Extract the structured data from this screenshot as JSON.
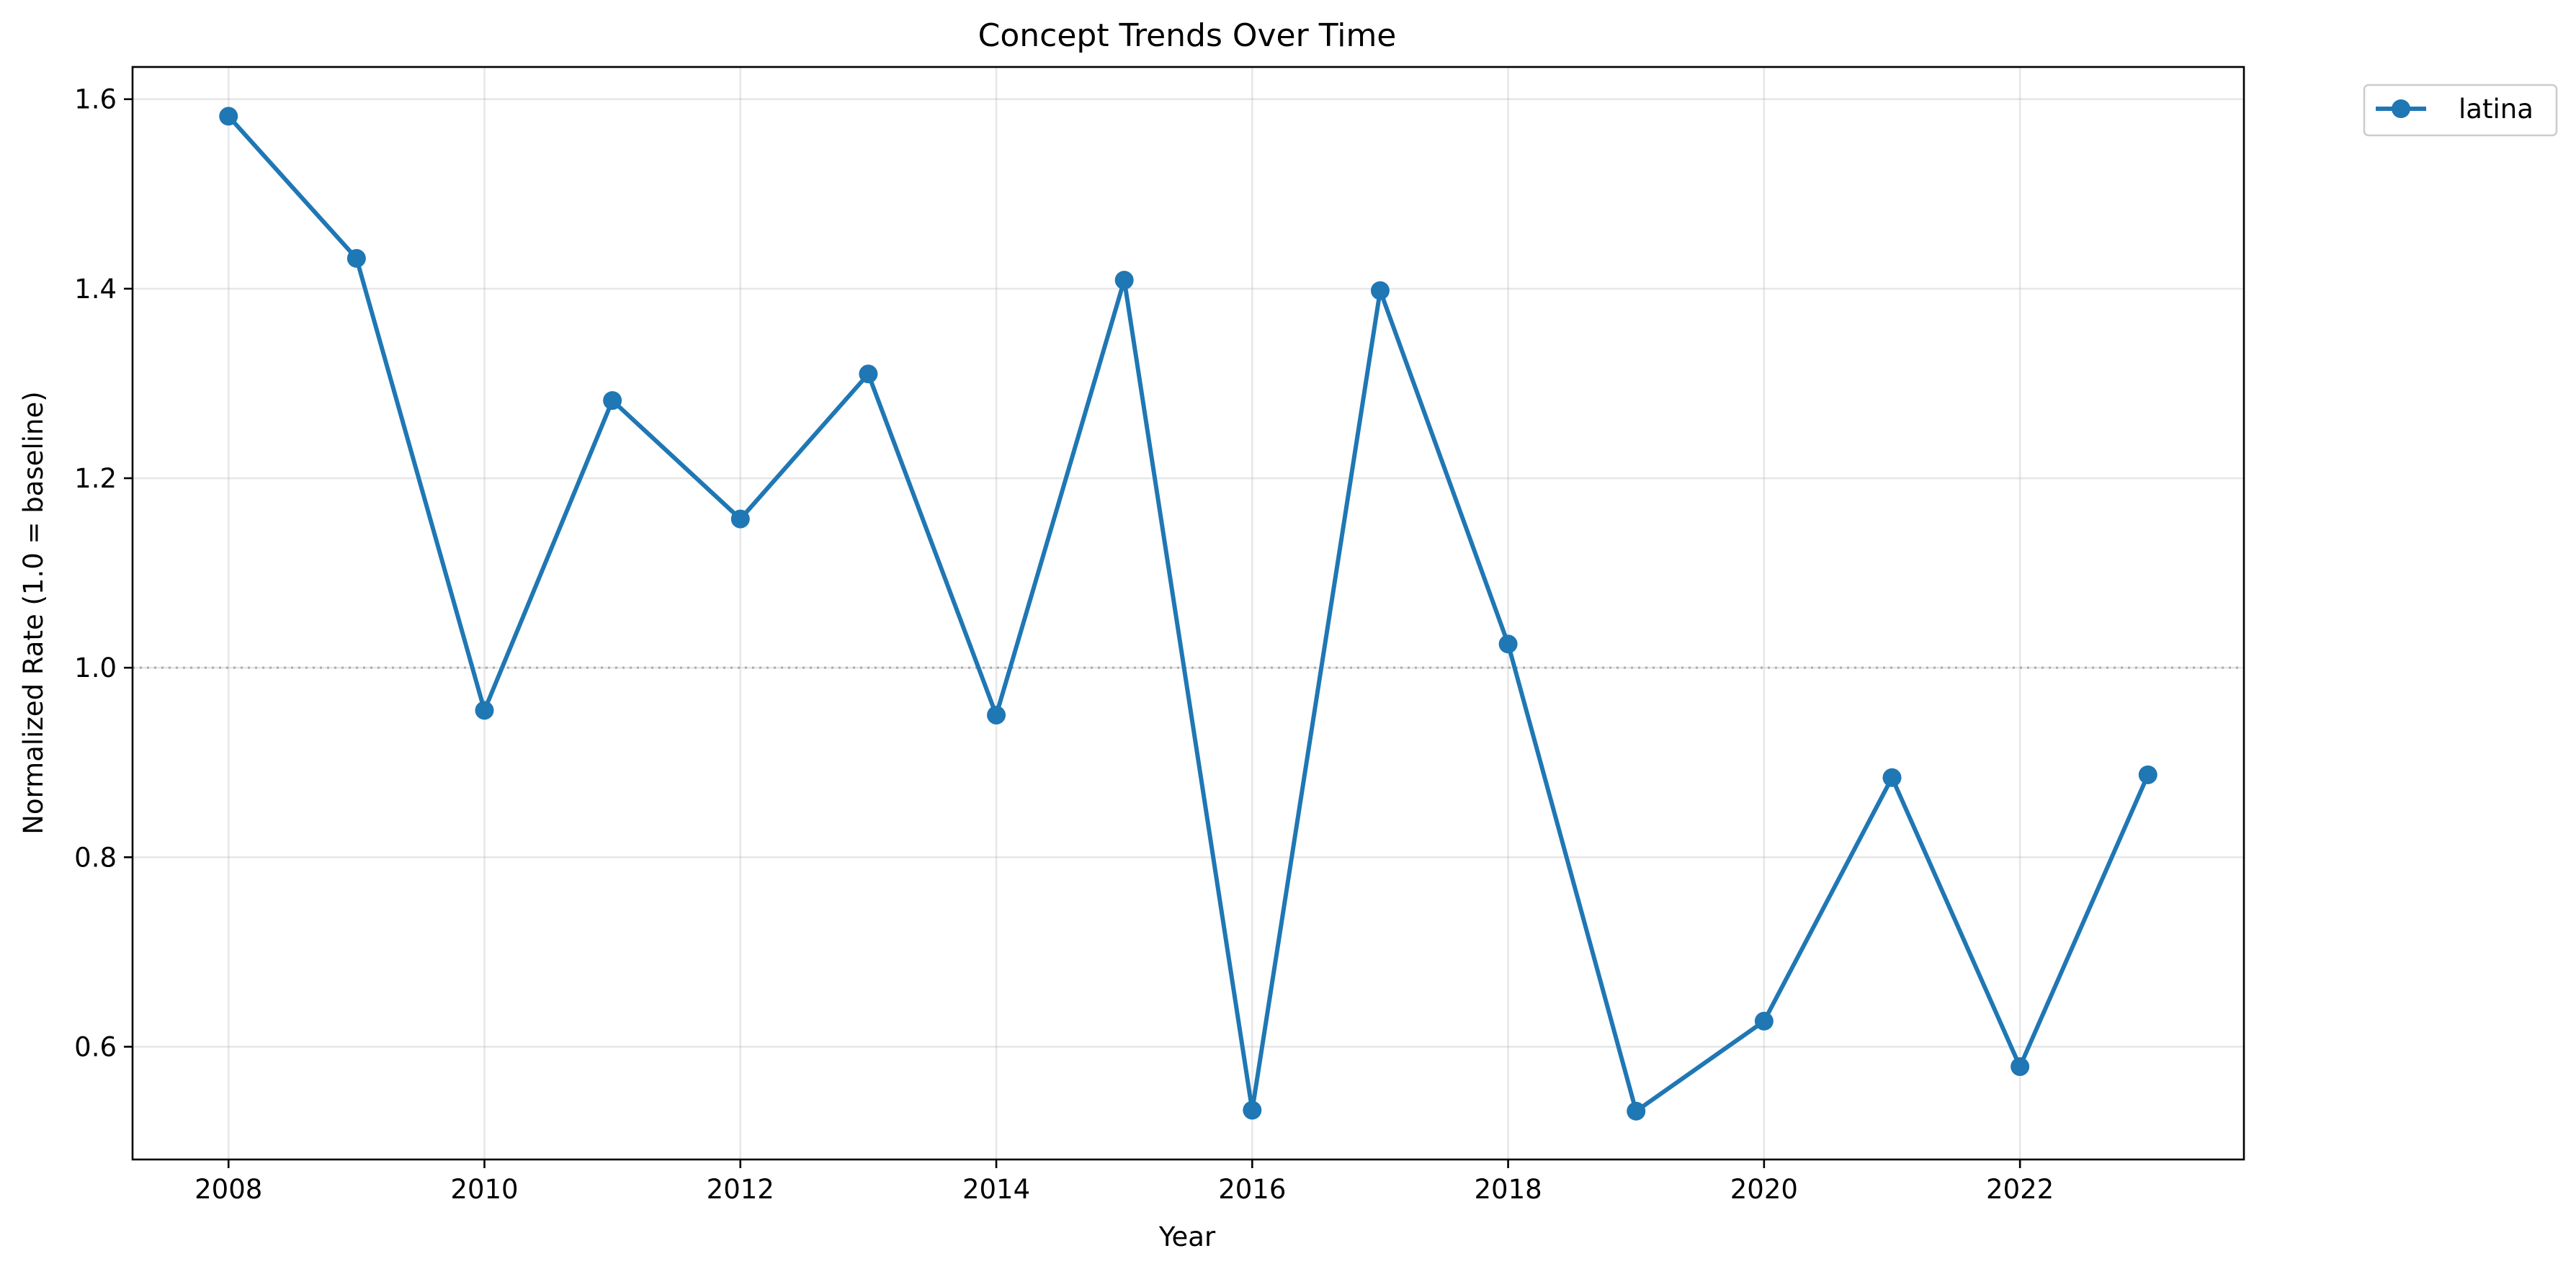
{
  "chart_data": {
    "type": "line",
    "title": "Concept Trends Over Time",
    "xlabel": "Year",
    "ylabel": "Normalized Rate (1.0 = baseline)",
    "x": [
      2008,
      2009,
      2010,
      2011,
      2012,
      2013,
      2014,
      2015,
      2016,
      2017,
      2018,
      2019,
      2020,
      2021,
      2022,
      2023
    ],
    "series": [
      {
        "name": "latina",
        "color": "#1f77b4",
        "marker": "circle",
        "values": [
          1.582,
          1.432,
          0.955,
          1.282,
          1.157,
          1.31,
          0.95,
          1.409,
          0.533,
          1.398,
          1.025,
          0.532,
          0.627,
          0.884,
          0.579,
          0.887
        ]
      }
    ],
    "xlim": [
      2007.25,
      2023.75
    ],
    "ylim": [
      0.481,
      1.634
    ],
    "xticks": [
      2008,
      2010,
      2012,
      2014,
      2016,
      2018,
      2020,
      2022
    ],
    "yticks": [
      0.6,
      0.8,
      1.0,
      1.2,
      1.4,
      1.6
    ],
    "ytick_labels": [
      "0.6",
      "0.8",
      "1.0",
      "1.2",
      "1.4",
      "1.6"
    ],
    "reference_line": {
      "y": 1.0,
      "style": "dotted",
      "color": "#aaaaaa"
    },
    "grid": true,
    "legend_position": "outside-top-right"
  }
}
